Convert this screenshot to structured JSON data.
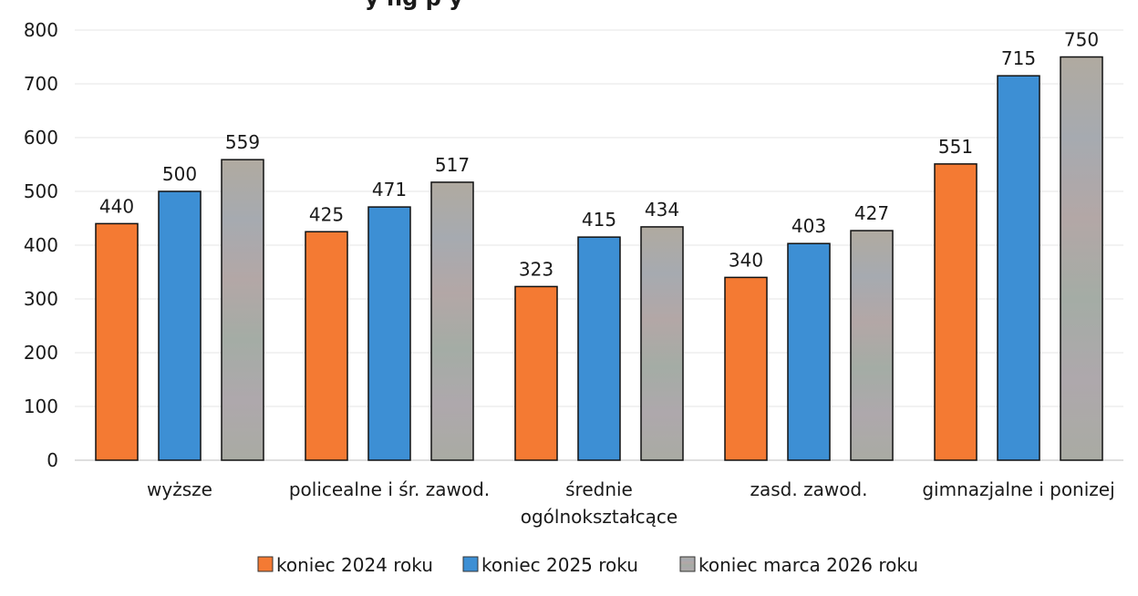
{
  "chart_data": {
    "type": "bar",
    "title_fragment": "y       ng p       y",
    "categories": [
      [
        "wyższe"
      ],
      [
        "policealne i śr. zawod."
      ],
      [
        "średnie",
        "ogólnokształcące"
      ],
      [
        "zasd. zawod."
      ],
      [
        "gimnazjalne i ponizej"
      ]
    ],
    "series": [
      {
        "name": "koniec 2024 roku",
        "values": [
          440,
          425,
          323,
          340,
          551
        ],
        "color": "#f47a33"
      },
      {
        "name": "koniec 2025 roku",
        "values": [
          500,
          471,
          415,
          403,
          715
        ],
        "color": "#3d8fd4"
      },
      {
        "name": "koniec marca 2026 roku",
        "values": [
          559,
          517,
          434,
          427,
          750
        ],
        "color": "#a8a8a0"
      }
    ],
    "ylim": [
      0,
      800
    ],
    "yticks": [
      0,
      100,
      200,
      300,
      400,
      500,
      600,
      700,
      800
    ],
    "grid": true,
    "legend_position": "bottom"
  }
}
